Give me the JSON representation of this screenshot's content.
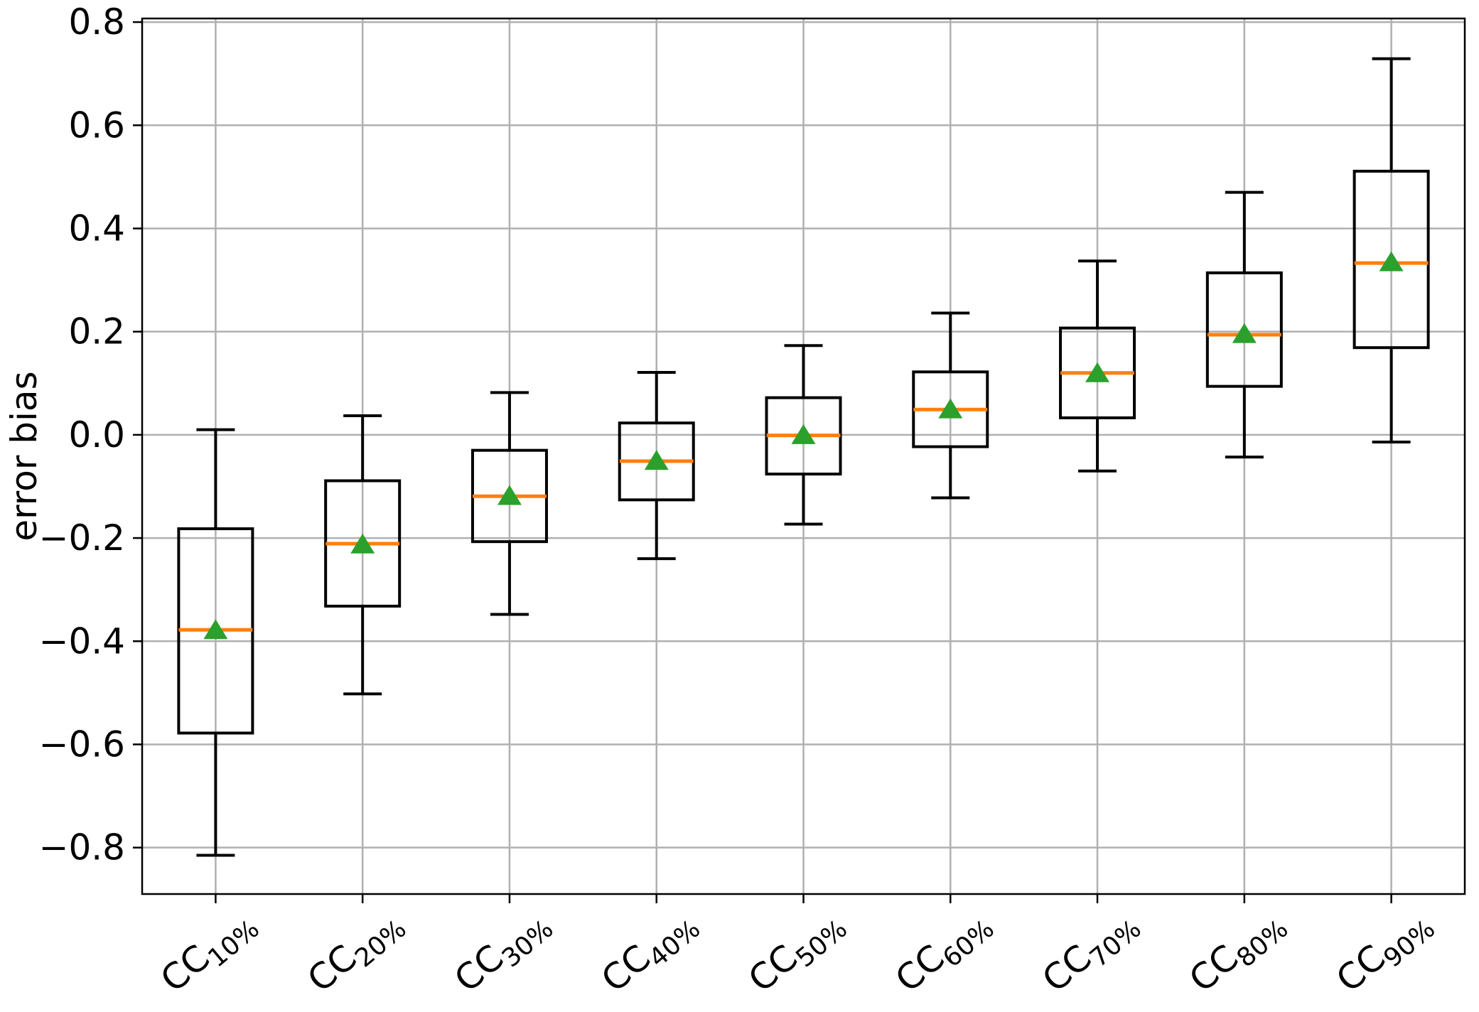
{
  "chart_data": {
    "type": "boxplot",
    "title": "",
    "xlabel": "",
    "ylabel": "error bias",
    "ylim": [
      -0.89,
      0.807
    ],
    "grid": true,
    "legend": "none",
    "yticks": [
      0.8,
      0.6,
      0.4,
      0.2,
      0.0,
      -0.2,
      -0.4,
      -0.6,
      -0.8
    ],
    "ytick_labels": [
      "0.8",
      "0.6",
      "0.4",
      "0.2",
      "0.0",
      "−0.2",
      "−0.4",
      "−0.6",
      "−0.8"
    ],
    "categories": [
      {
        "label": "CC10%",
        "prefix": "CC",
        "subscript": "10%"
      },
      {
        "label": "CC20%",
        "prefix": "CC",
        "subscript": "20%"
      },
      {
        "label": "CC30%",
        "prefix": "CC",
        "subscript": "30%"
      },
      {
        "label": "CC40%",
        "prefix": "CC",
        "subscript": "40%"
      },
      {
        "label": "CC50%",
        "prefix": "CC",
        "subscript": "50%"
      },
      {
        "label": "CC60%",
        "prefix": "CC",
        "subscript": "60%"
      },
      {
        "label": "CC70%",
        "prefix": "CC",
        "subscript": "70%"
      },
      {
        "label": "CC80%",
        "prefix": "CC",
        "subscript": "80%"
      },
      {
        "label": "CC90%",
        "prefix": "CC",
        "subscript": "90%"
      }
    ],
    "boxes": [
      {
        "category": "CC10%",
        "whisker_low": -0.815,
        "q1": -0.578,
        "median": -0.378,
        "mean": -0.378,
        "q3": -0.182,
        "whisker_high": 0.01
      },
      {
        "category": "CC20%",
        "whisker_low": -0.502,
        "q1": -0.332,
        "median": -0.211,
        "mean": -0.212,
        "q3": -0.089,
        "whisker_high": 0.037
      },
      {
        "category": "CC30%",
        "whisker_low": -0.348,
        "q1": -0.207,
        "median": -0.119,
        "mean": -0.118,
        "q3": -0.03,
        "whisker_high": 0.082
      },
      {
        "category": "CC40%",
        "whisker_low": -0.24,
        "q1": -0.126,
        "median": -0.051,
        "mean": -0.05,
        "q3": 0.023,
        "whisker_high": 0.121
      },
      {
        "category": "CC50%",
        "whisker_low": -0.173,
        "q1": -0.076,
        "median": -0.001,
        "mean": 0.0,
        "q3": 0.072,
        "whisker_high": 0.173
      },
      {
        "category": "CC60%",
        "whisker_low": -0.122,
        "q1": -0.023,
        "median": 0.049,
        "mean": 0.05,
        "q3": 0.122,
        "whisker_high": 0.236
      },
      {
        "category": "CC70%",
        "whisker_low": -0.07,
        "q1": 0.033,
        "median": 0.12,
        "mean": 0.12,
        "q3": 0.207,
        "whisker_high": 0.337
      },
      {
        "category": "CC80%",
        "whisker_low": -0.043,
        "q1": 0.094,
        "median": 0.194,
        "mean": 0.196,
        "q3": 0.314,
        "whisker_high": 0.47
      },
      {
        "category": "CC90%",
        "whisker_low": -0.014,
        "q1": 0.169,
        "median": 0.333,
        "mean": 0.335,
        "q3": 0.511,
        "whisker_high": 0.729
      }
    ],
    "colors": {
      "median": "#ff7f0e",
      "mean_marker": "#2ca02c",
      "box_edge": "#000000",
      "grid": "#b0b0b0",
      "background": "#ffffff"
    }
  }
}
